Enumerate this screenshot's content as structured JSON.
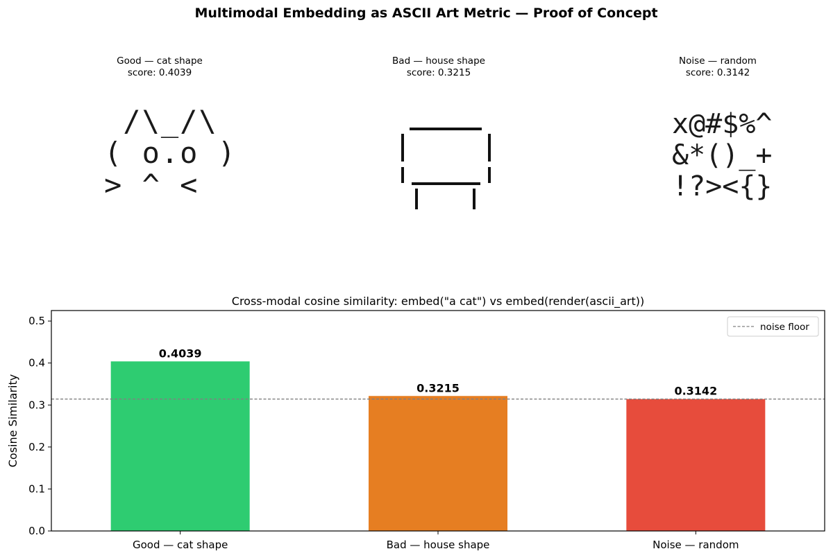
{
  "figure": {
    "title": "Multimodal Embedding as ASCII Art Metric — Proof of Concept"
  },
  "panels": [
    {
      "title": "Good — cat shape",
      "score": "score: 0.4039",
      "art": " /\\_/\\\n( o.o )\n> ^ <"
    },
    {
      "title": "Bad — house shape",
      "score": "score: 0.3215",
      "art": ""
    },
    {
      "title": "Noise — random",
      "score": "score: 0.3142",
      "art": "x@#$%^\n&*()_+\n!?><{}"
    }
  ],
  "chart_data": {
    "type": "bar",
    "title": "Cross-modal cosine similarity: embed(\"a cat\") vs embed(render(ascii_art))",
    "xlabel": "",
    "ylabel": "Cosine Similarity",
    "categories": [
      "Good — cat shape",
      "Bad — house shape",
      "Noise — random"
    ],
    "values": [
      0.4039,
      0.3215,
      0.3142
    ],
    "value_labels": [
      "0.4039",
      "0.3215",
      "0.3142"
    ],
    "colors": [
      "#2ecc71",
      "#e67e22",
      "#e74c3c"
    ],
    "ylim": [
      0,
      0.525
    ],
    "yticks": [
      0.0,
      0.1,
      0.2,
      0.3,
      0.4,
      0.5
    ],
    "ytick_labels": [
      "0.0",
      "0.1",
      "0.2",
      "0.3",
      "0.4",
      "0.5"
    ],
    "reference_line": {
      "label": "noise floor",
      "value": 0.3142,
      "color": "#808080"
    },
    "legend": {
      "position": "top-right",
      "entries": [
        "noise floor"
      ]
    },
    "grid": false
  }
}
